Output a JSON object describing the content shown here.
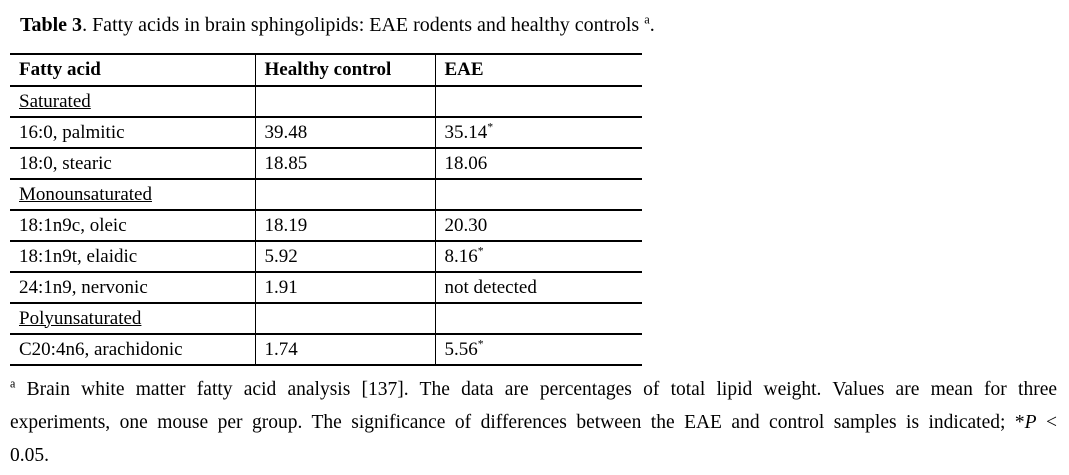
{
  "caption": {
    "label": "Table 3",
    "text": ". Fatty acids in brain sphingolipids: EAE rodents and healthy controls ",
    "mark": "a",
    "end": "."
  },
  "table": {
    "columns": [
      "Fatty acid",
      "Healthy control",
      "EAE"
    ],
    "rows": [
      {
        "type": "category",
        "name": "Saturated",
        "control": "",
        "eae": ""
      },
      {
        "type": "data",
        "name": "16:0, palmitic",
        "control": "39.48",
        "eae": "35.14",
        "eae_sup": "*"
      },
      {
        "type": "data",
        "name": "18:0, stearic",
        "control": "18.85",
        "eae": "18.06"
      },
      {
        "type": "category",
        "name": "Monounsaturated",
        "control": "",
        "eae": ""
      },
      {
        "type": "data",
        "name": "18:1n9c, oleic",
        "control": "18.19",
        "eae": "20.30"
      },
      {
        "type": "data",
        "name": "18:1n9t, elaidic",
        "control": "5.92",
        "eae": "8.16",
        "eae_sup": "*"
      },
      {
        "type": "data",
        "name": "24:1n9, nervonic",
        "control": "1.91",
        "eae": "not detected"
      },
      {
        "type": "category",
        "name": "Polyunsaturated",
        "control": "",
        "eae": ""
      },
      {
        "type": "data",
        "name": "C20:4n6, arachidonic",
        "control": "1.74",
        "eae": "5.56",
        "eae_sup": "*"
      }
    ]
  },
  "footnote": {
    "mark": "a",
    "line1": "Brain white matter fatty acid analysis [137]. The data are percentages of total lipid weight. Values are mean for three",
    "line2a": "experiments, one mouse per group. The significance of differences between the EAE and control samples is indicated; *",
    "line2_italic": "P",
    "line2b": "<",
    "line3": "0.05."
  },
  "colors": {
    "background": "#ffffff",
    "text": "#000000",
    "border": "#000000"
  }
}
